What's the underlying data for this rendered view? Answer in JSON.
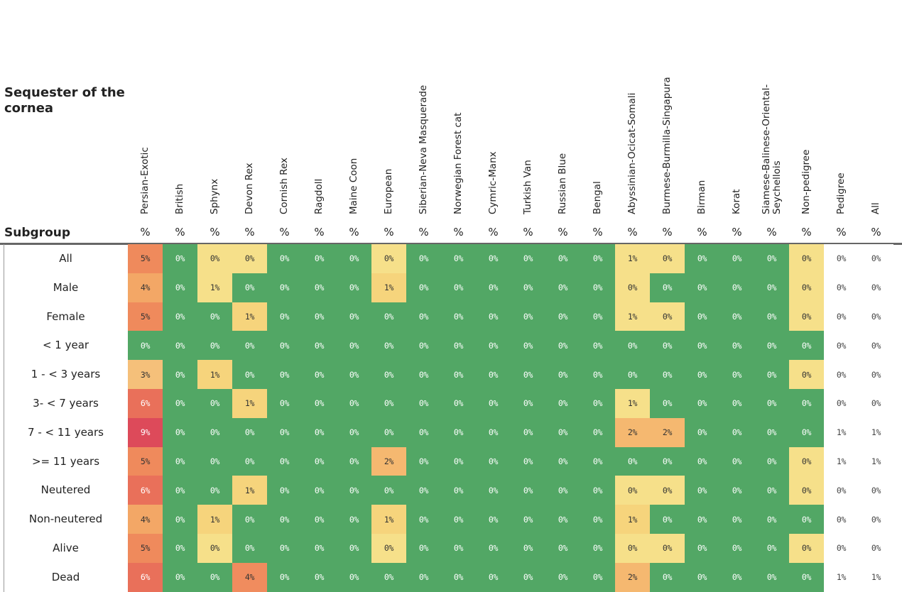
{
  "chart_data": {
    "type": "heatmap",
    "title": "Sequester of the cornea",
    "row_header": "Subgroup",
    "unit_label": "%",
    "columns": [
      "Persian-Exotic",
      "British",
      "Sphynx",
      "Devon Rex",
      "Cornish Rex",
      "Ragdoll",
      "Maine Coon",
      "European",
      "Siberian-Neva Masquerade",
      "Norwegian Forest cat",
      "Cymric-Manx",
      "Turkish Van",
      "Russian Blue",
      "Bengal",
      "Abyssinian-Ocicat-Somali",
      "Burmese-Burmilla-Singapura",
      "Birman",
      "Korat",
      "Siamese-Balinese-Oriental-Seychellois",
      "Non-pedigree",
      "Pedigree",
      "All"
    ],
    "rows": [
      "All",
      "Male",
      "Female",
      "< 1 year",
      "1 - < 3 years",
      "3- < 7 years",
      "7 - < 11 years",
      ">= 11 years",
      "Neutered",
      "Non-neutered",
      "Alive",
      "Dead"
    ],
    "values": [
      [
        "5%",
        "0%",
        "0%",
        "0%",
        "0%",
        "0%",
        "0%",
        "0%",
        "0%",
        "0%",
        "0%",
        "0%",
        "0%",
        "0%",
        "1%",
        "0%",
        "0%",
        "0%",
        "0%",
        "0%",
        "0%",
        "0%"
      ],
      [
        "4%",
        "0%",
        "1%",
        "0%",
        "0%",
        "0%",
        "0%",
        "1%",
        "0%",
        "0%",
        "0%",
        "0%",
        "0%",
        "0%",
        "0%",
        "0%",
        "0%",
        "0%",
        "0%",
        "0%",
        "0%",
        "0%"
      ],
      [
        "5%",
        "0%",
        "0%",
        "1%",
        "0%",
        "0%",
        "0%",
        "0%",
        "0%",
        "0%",
        "0%",
        "0%",
        "0%",
        "0%",
        "1%",
        "0%",
        "0%",
        "0%",
        "0%",
        "0%",
        "0%",
        "0%"
      ],
      [
        "0%",
        "0%",
        "0%",
        "0%",
        "0%",
        "0%",
        "0%",
        "0%",
        "0%",
        "0%",
        "0%",
        "0%",
        "0%",
        "0%",
        "0%",
        "0%",
        "0%",
        "0%",
        "0%",
        "0%",
        "0%",
        "0%"
      ],
      [
        "3%",
        "0%",
        "1%",
        "0%",
        "0%",
        "0%",
        "0%",
        "0%",
        "0%",
        "0%",
        "0%",
        "0%",
        "0%",
        "0%",
        "0%",
        "0%",
        "0%",
        "0%",
        "0%",
        "0%",
        "0%",
        "0%"
      ],
      [
        "6%",
        "0%",
        "0%",
        "1%",
        "0%",
        "0%",
        "0%",
        "0%",
        "0%",
        "0%",
        "0%",
        "0%",
        "0%",
        "0%",
        "1%",
        "0%",
        "0%",
        "0%",
        "0%",
        "0%",
        "0%",
        "0%"
      ],
      [
        "9%",
        "0%",
        "0%",
        "0%",
        "0%",
        "0%",
        "0%",
        "0%",
        "0%",
        "0%",
        "0%",
        "0%",
        "0%",
        "0%",
        "2%",
        "2%",
        "0%",
        "0%",
        "0%",
        "0%",
        "1%",
        "1%"
      ],
      [
        "5%",
        "0%",
        "0%",
        "0%",
        "0%",
        "0%",
        "0%",
        "2%",
        "0%",
        "0%",
        "0%",
        "0%",
        "0%",
        "0%",
        "0%",
        "0%",
        "0%",
        "0%",
        "0%",
        "0%",
        "1%",
        "1%"
      ],
      [
        "6%",
        "0%",
        "0%",
        "1%",
        "0%",
        "0%",
        "0%",
        "0%",
        "0%",
        "0%",
        "0%",
        "0%",
        "0%",
        "0%",
        "0%",
        "0%",
        "0%",
        "0%",
        "0%",
        "0%",
        "0%",
        "0%"
      ],
      [
        "4%",
        "0%",
        "1%",
        "0%",
        "0%",
        "0%",
        "0%",
        "1%",
        "0%",
        "0%",
        "0%",
        "0%",
        "0%",
        "0%",
        "1%",
        "0%",
        "0%",
        "0%",
        "0%",
        "0%",
        "0%",
        "0%"
      ],
      [
        "5%",
        "0%",
        "0%",
        "0%",
        "0%",
        "0%",
        "0%",
        "0%",
        "0%",
        "0%",
        "0%",
        "0%",
        "0%",
        "0%",
        "0%",
        "0%",
        "0%",
        "0%",
        "0%",
        "0%",
        "0%",
        "0%"
      ],
      [
        "6%",
        "0%",
        "0%",
        "4%",
        "0%",
        "0%",
        "0%",
        "0%",
        "0%",
        "0%",
        "0%",
        "0%",
        "0%",
        "0%",
        "2%",
        "0%",
        "0%",
        "0%",
        "0%",
        "0%",
        "1%",
        "1%"
      ]
    ],
    "cell_colors": [
      [
        "#ef8a5c",
        "#52a765",
        "#f6e08a",
        "#f6e08a",
        "#52a765",
        "#52a765",
        "#52a765",
        "#f6e08a",
        "#52a765",
        "#52a765",
        "#52a765",
        "#52a765",
        "#52a765",
        "#52a765",
        "#f6e08a",
        "#f6e08a",
        "#52a765",
        "#52a765",
        "#52a765",
        "#f6e08a",
        "#ffffff",
        "#ffffff"
      ],
      [
        "#f3a766",
        "#52a765",
        "#f6e08a",
        "#52a765",
        "#52a765",
        "#52a765",
        "#52a765",
        "#f6d47c",
        "#52a765",
        "#52a765",
        "#52a765",
        "#52a765",
        "#52a765",
        "#52a765",
        "#f6e08a",
        "#52a765",
        "#52a765",
        "#52a765",
        "#52a765",
        "#f6e08a",
        "#ffffff",
        "#ffffff"
      ],
      [
        "#ef8a5c",
        "#52a765",
        "#52a765",
        "#f6d47c",
        "#52a765",
        "#52a765",
        "#52a765",
        "#52a765",
        "#52a765",
        "#52a765",
        "#52a765",
        "#52a765",
        "#52a765",
        "#52a765",
        "#f6e08a",
        "#f6e08a",
        "#52a765",
        "#52a765",
        "#52a765",
        "#f6e08a",
        "#ffffff",
        "#ffffff"
      ],
      [
        "#52a765",
        "#52a765",
        "#52a765",
        "#52a765",
        "#52a765",
        "#52a765",
        "#52a765",
        "#52a765",
        "#52a765",
        "#52a765",
        "#52a765",
        "#52a765",
        "#52a765",
        "#52a765",
        "#52a765",
        "#52a765",
        "#52a765",
        "#52a765",
        "#52a765",
        "#52a765",
        "#ffffff",
        "#ffffff"
      ],
      [
        "#f5c07a",
        "#52a765",
        "#f6d47c",
        "#52a765",
        "#52a765",
        "#52a765",
        "#52a765",
        "#52a765",
        "#52a765",
        "#52a765",
        "#52a765",
        "#52a765",
        "#52a765",
        "#52a765",
        "#52a765",
        "#52a765",
        "#52a765",
        "#52a765",
        "#52a765",
        "#f6e08a",
        "#ffffff",
        "#ffffff"
      ],
      [
        "#e9705a",
        "#52a765",
        "#52a765",
        "#f6d47c",
        "#52a765",
        "#52a765",
        "#52a765",
        "#52a765",
        "#52a765",
        "#52a765",
        "#52a765",
        "#52a765",
        "#52a765",
        "#52a765",
        "#f6e08a",
        "#52a765",
        "#52a765",
        "#52a765",
        "#52a765",
        "#52a765",
        "#ffffff",
        "#ffffff"
      ],
      [
        "#dd4a5a",
        "#52a765",
        "#52a765",
        "#52a765",
        "#52a765",
        "#52a765",
        "#52a765",
        "#52a765",
        "#52a765",
        "#52a765",
        "#52a765",
        "#52a765",
        "#52a765",
        "#52a765",
        "#f5b870",
        "#f5b870",
        "#52a765",
        "#52a765",
        "#52a765",
        "#52a765",
        "#ffffff",
        "#ffffff"
      ],
      [
        "#ef8a5c",
        "#52a765",
        "#52a765",
        "#52a765",
        "#52a765",
        "#52a765",
        "#52a765",
        "#f5b870",
        "#52a765",
        "#52a765",
        "#52a765",
        "#52a765",
        "#52a765",
        "#52a765",
        "#52a765",
        "#52a765",
        "#52a765",
        "#52a765",
        "#52a765",
        "#f6e08a",
        "#ffffff",
        "#ffffff"
      ],
      [
        "#e9705a",
        "#52a765",
        "#52a765",
        "#f6d47c",
        "#52a765",
        "#52a765",
        "#52a765",
        "#52a765",
        "#52a765",
        "#52a765",
        "#52a765",
        "#52a765",
        "#52a765",
        "#52a765",
        "#f6e08a",
        "#f6e08a",
        "#52a765",
        "#52a765",
        "#52a765",
        "#f6e08a",
        "#ffffff",
        "#ffffff"
      ],
      [
        "#f3a766",
        "#52a765",
        "#f6d47c",
        "#52a765",
        "#52a765",
        "#52a765",
        "#52a765",
        "#f6d47c",
        "#52a765",
        "#52a765",
        "#52a765",
        "#52a765",
        "#52a765",
        "#52a765",
        "#f6d47c",
        "#52a765",
        "#52a765",
        "#52a765",
        "#52a765",
        "#52a765",
        "#ffffff",
        "#ffffff"
      ],
      [
        "#ef8a5c",
        "#52a765",
        "#f6e08a",
        "#52a765",
        "#52a765",
        "#52a765",
        "#52a765",
        "#f6e08a",
        "#52a765",
        "#52a765",
        "#52a765",
        "#52a765",
        "#52a765",
        "#52a765",
        "#f6e08a",
        "#f6e08a",
        "#52a765",
        "#52a765",
        "#52a765",
        "#f6e08a",
        "#ffffff",
        "#ffffff"
      ],
      [
        "#e9705a",
        "#52a765",
        "#52a765",
        "#f08c5e",
        "#52a765",
        "#52a765",
        "#52a765",
        "#52a765",
        "#52a765",
        "#52a765",
        "#52a765",
        "#52a765",
        "#52a765",
        "#52a765",
        "#f5b870",
        "#52a765",
        "#52a765",
        "#52a765",
        "#52a765",
        "#52a765",
        "#ffffff",
        "#ffffff"
      ]
    ]
  }
}
